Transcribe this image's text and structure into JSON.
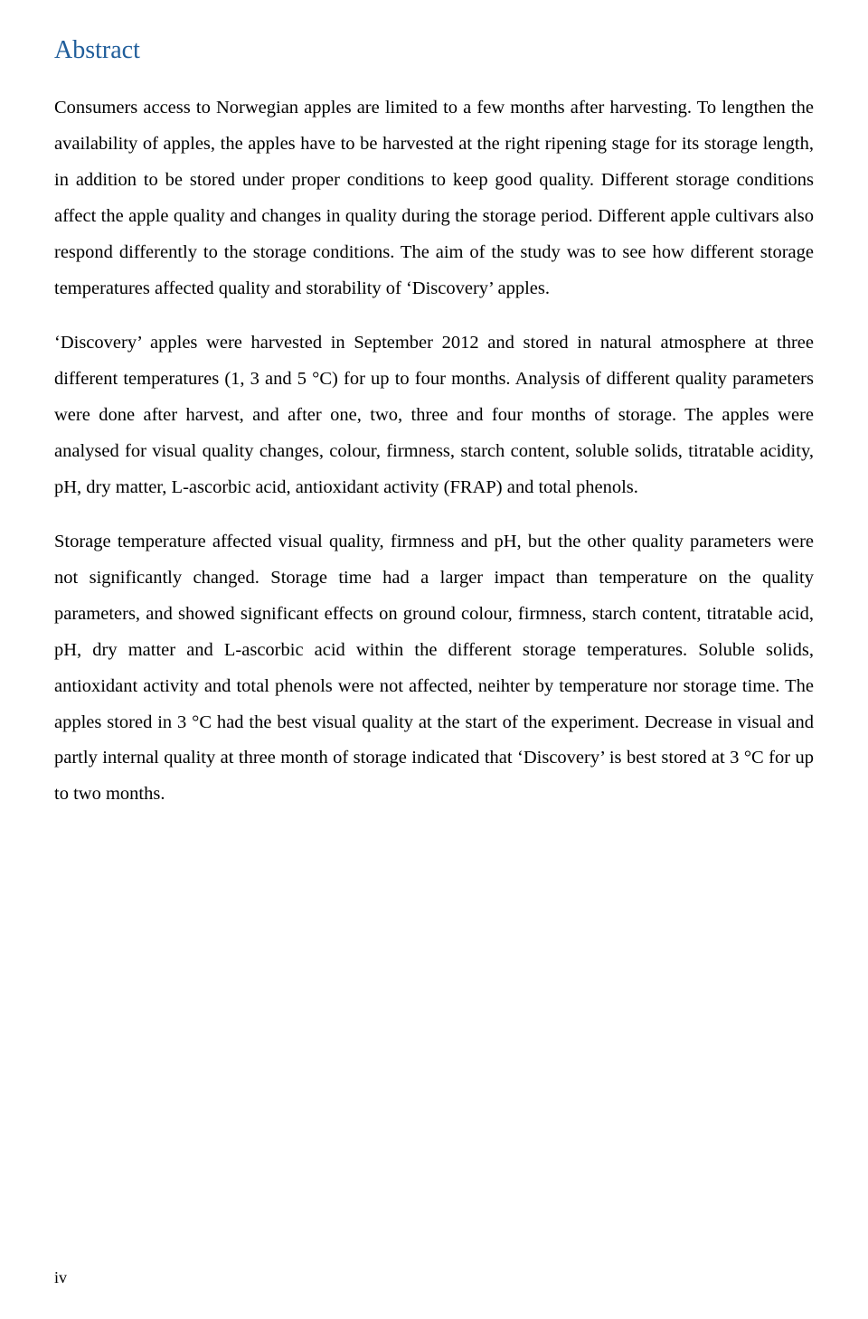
{
  "heading": {
    "title": "Abstract",
    "color": "#1f5d9a",
    "fontsize": 28
  },
  "body": {
    "fontsize": 20.5,
    "line_height": 1.95,
    "text_color": "#000000",
    "background_color": "#ffffff",
    "paragraphs": [
      "Consumers access to Norwegian apples are limited to a few months after harvesting. To lengthen the availability of apples, the apples have to be harvested at the right ripening stage for its storage length, in addition to be stored under proper conditions to keep good quality. Different storage conditions affect the apple quality and changes in quality during the storage period. Different apple cultivars also respond differently to the storage conditions. The aim of the study was to see how different storage temperatures affected quality and storability of ‘Discovery’ apples.",
      "‘Discovery’ apples were harvested in September 2012 and stored in natural atmosphere at three different temperatures (1, 3 and 5 °C) for up to four months. Analysis of different quality parameters were done after harvest, and after one, two, three and four months of storage. The apples were analysed for visual quality changes, colour, firmness, starch content, soluble solids, titratable acidity, pH, dry matter, L-ascorbic acid, antioxidant activity (FRAP) and total phenols.",
      "Storage temperature affected visual quality, firmness and pH, but the other quality parameters were not significantly changed. Storage time had a larger impact than temperature on the quality parameters, and showed significant effects on ground colour, firmness, starch content, titratable acid, pH, dry matter and L-ascorbic acid within the different storage temperatures. Soluble solids, antioxidant activity and total phenols were not affected, neihter by temperature nor storage time. The apples stored in 3 °C had the best visual quality at the start of the experiment. Decrease in visual and partly internal quality at three month of storage indicated that ‘Discovery’ is best stored at 3 °C for up to two months."
    ]
  },
  "footer": {
    "page_number": "iv"
  }
}
